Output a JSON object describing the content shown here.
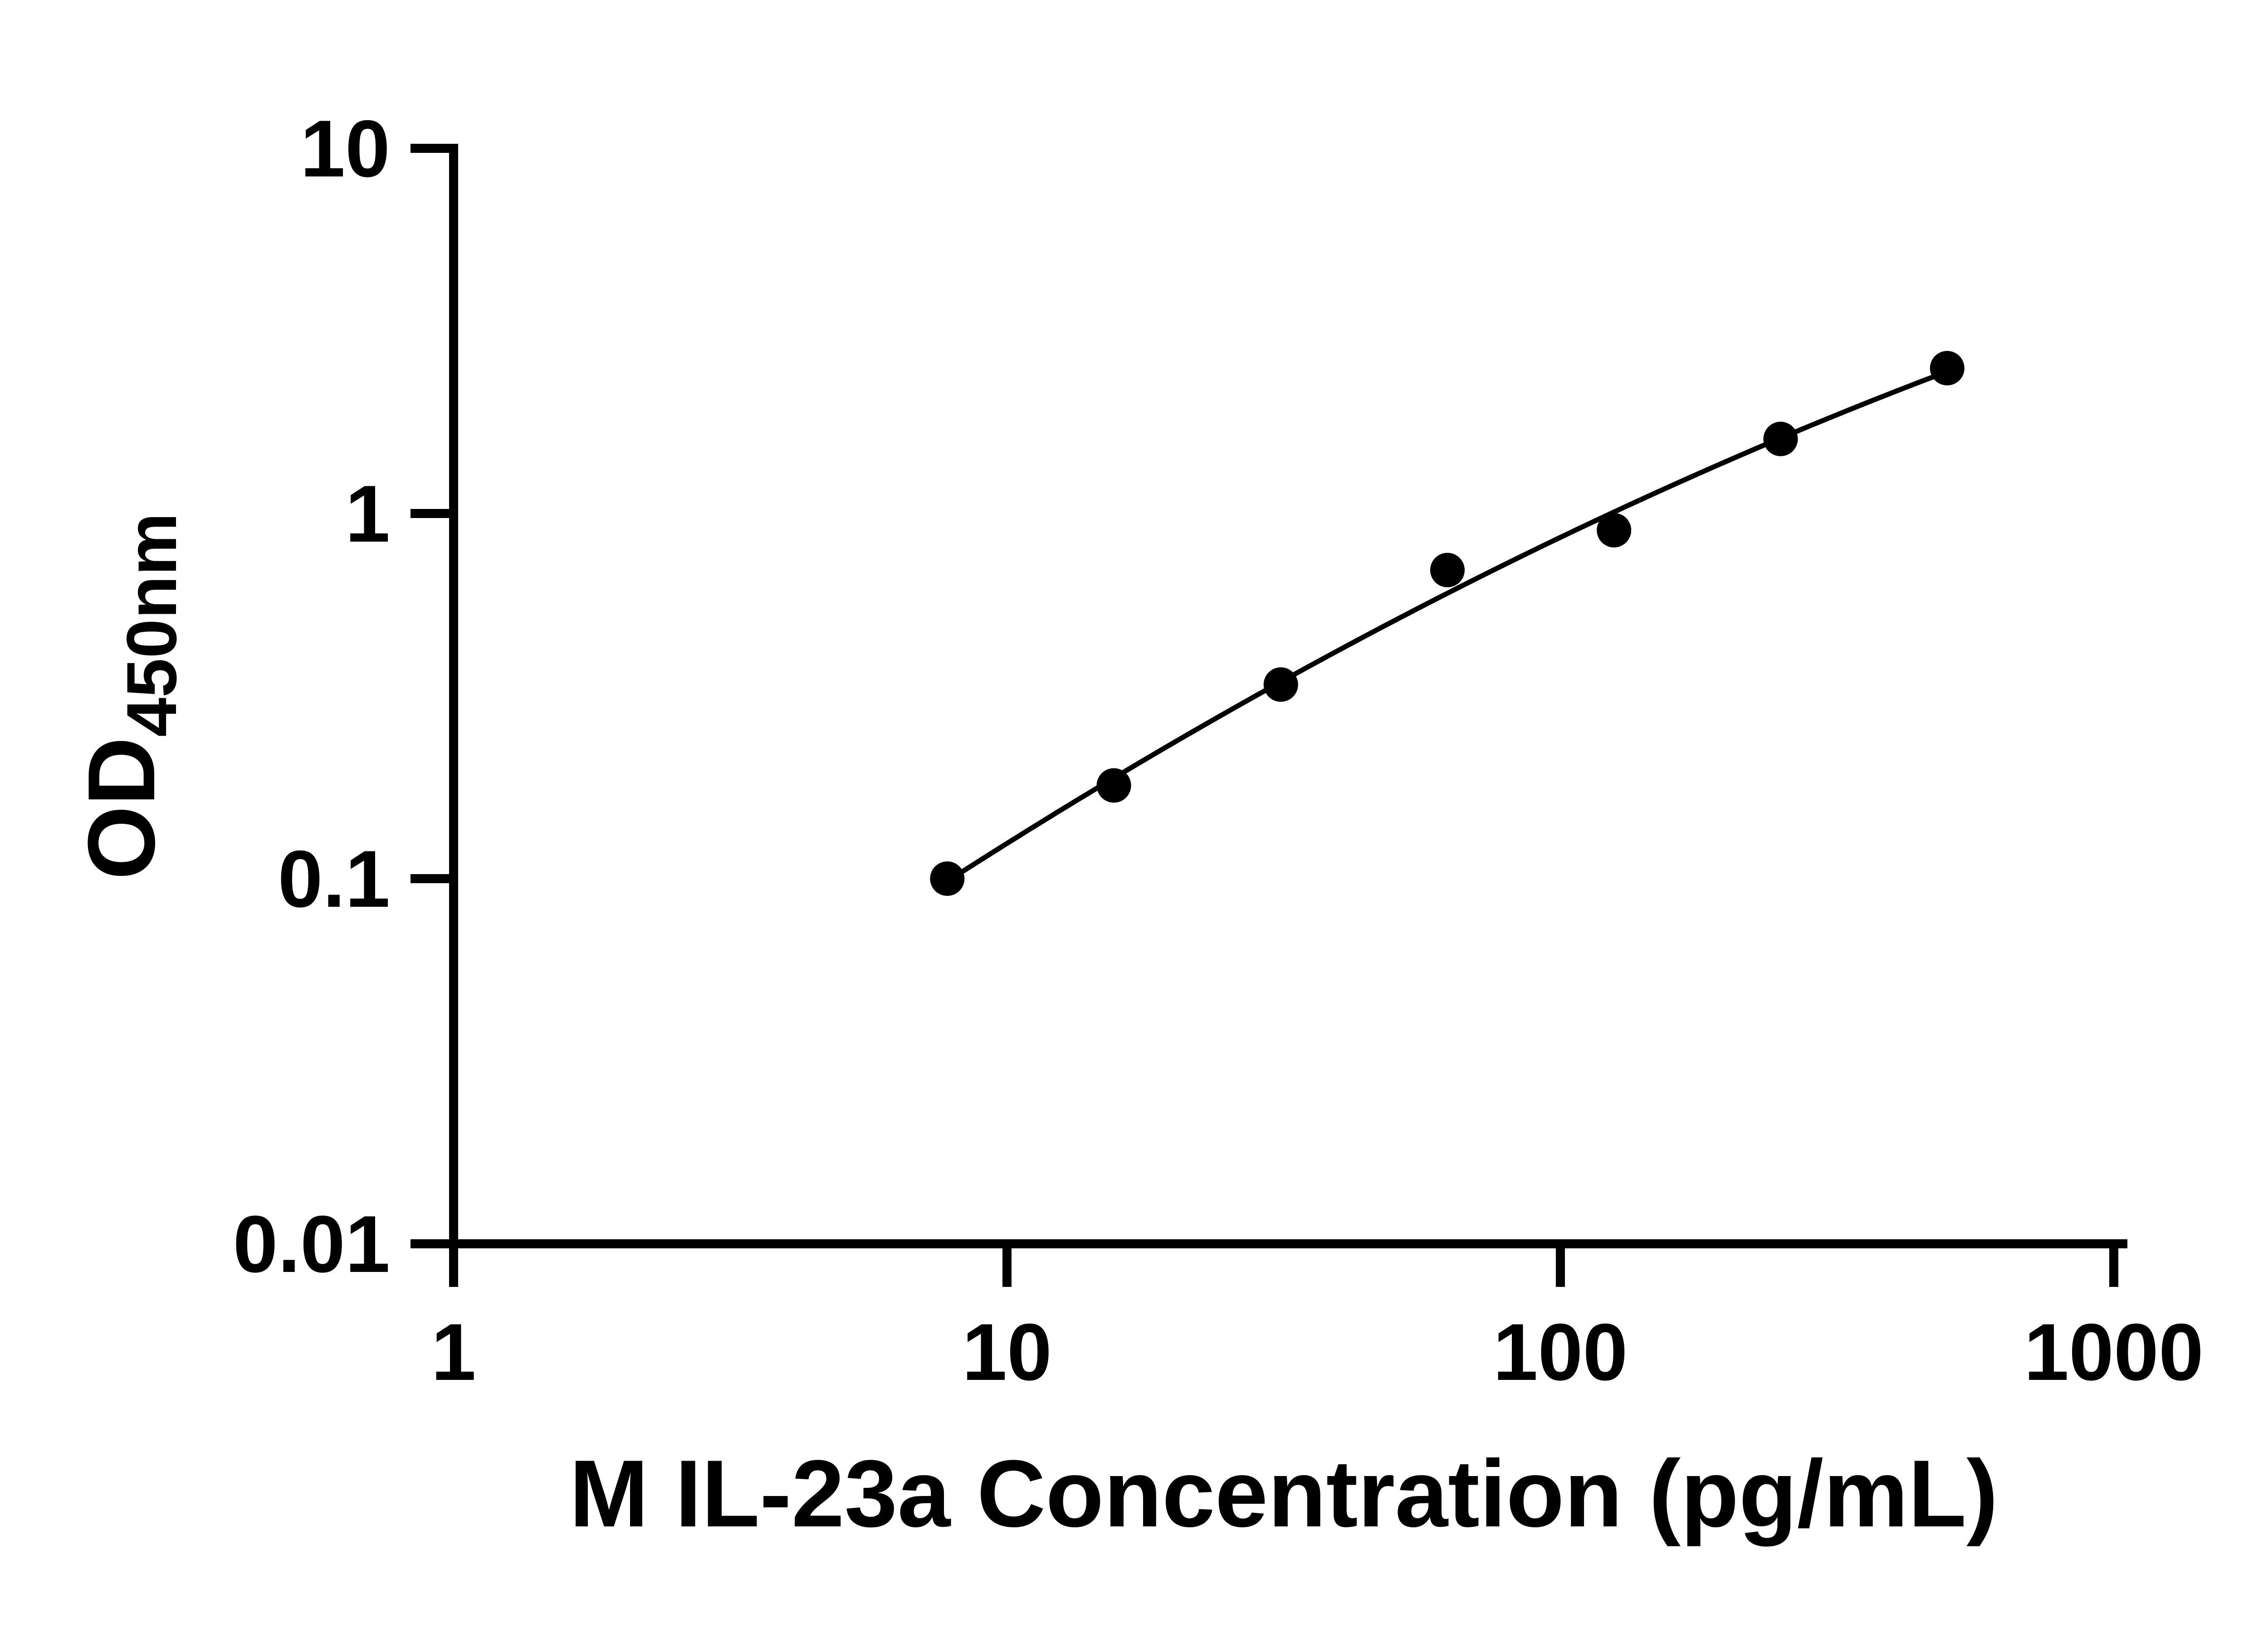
{
  "chart_data": {
    "type": "scatter",
    "title": "",
    "xlabel": "M IL-23a Concentration (pg/mL)",
    "ylabel": {
      "main": "OD",
      "subscript": "450nm"
    },
    "xscale": "log",
    "yscale": "log",
    "xlim": [
      1,
      1000
    ],
    "ylim": [
      0.01,
      10
    ],
    "x_ticks": [
      1,
      10,
      100,
      1000
    ],
    "y_ticks": [
      10,
      1,
      0.1,
      0.01
    ],
    "grid": false,
    "legend": false,
    "series": [
      {
        "marker": "circle",
        "color": "#000000",
        "x": [
          7.8,
          15.6,
          31.25,
          62.5,
          125,
          250,
          500
        ],
        "y": [
          0.1,
          0.18,
          0.34,
          0.7,
          0.9,
          1.6,
          2.5
        ]
      }
    ],
    "trendline": {
      "type": "quadratic-loglog",
      "color": "#000000"
    }
  },
  "colors": {
    "background": "#ffffff",
    "axis": "#000000"
  }
}
